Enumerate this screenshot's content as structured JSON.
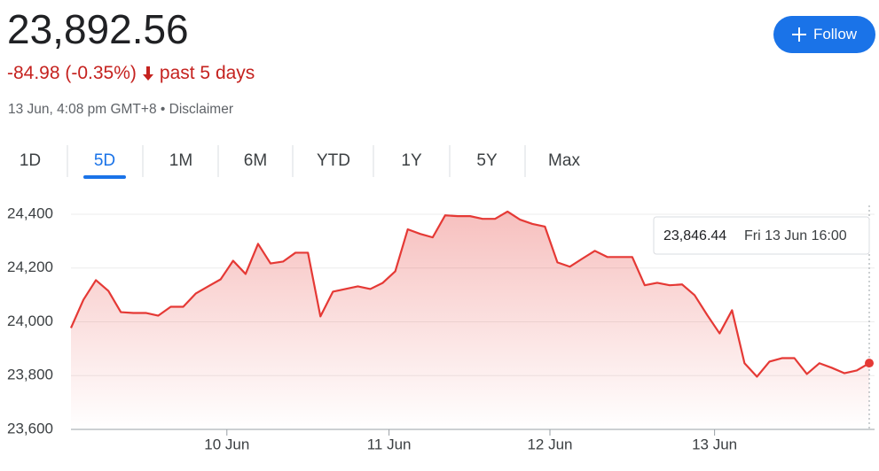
{
  "header": {
    "price": "23,892.56",
    "change": "-84.98 (-0.35%)",
    "period": "past 5 days",
    "timestamp": "13 Jun, 4:08 pm GMT+8",
    "separator": "•",
    "disclaimer": "Disclaimer"
  },
  "follow_button": "Follow",
  "tabs": {
    "items": [
      "1D",
      "5D",
      "1M",
      "6M",
      "YTD",
      "1Y",
      "5Y",
      "Max"
    ],
    "active": 1
  },
  "chart_data": {
    "type": "line",
    "color": "#e53935",
    "x": [
      0,
      1,
      2,
      3,
      4,
      5,
      6,
      7,
      8,
      9,
      10,
      11,
      12,
      13,
      14,
      15,
      16,
      17,
      18,
      19,
      20,
      21,
      22,
      23,
      24,
      25,
      26,
      27,
      28,
      29,
      30,
      31,
      32,
      33,
      34,
      35,
      36,
      37,
      38,
      39,
      40,
      41,
      42,
      43,
      44,
      45,
      46,
      47,
      48,
      49,
      50,
      51,
      52,
      53,
      54,
      55,
      56,
      57,
      58,
      59,
      60,
      61,
      62,
      63,
      64
    ],
    "values": [
      23977,
      24082,
      24155,
      24115,
      24036,
      24033,
      24033,
      24023,
      24056,
      24056,
      24105,
      24132,
      24158,
      24227,
      24178,
      24290,
      24217,
      24224,
      24257,
      24257,
      24020,
      24112,
      24122,
      24132,
      24122,
      24145,
      24188,
      24344,
      24327,
      24314,
      24396,
      24393,
      24393,
      24383,
      24383,
      24410,
      24380,
      24364,
      24354,
      24221,
      24205,
      24235,
      24264,
      24241,
      24241,
      24241,
      24136,
      24145,
      24136,
      24139,
      24099,
      24026,
      23957,
      24043,
      23846,
      23796,
      23852,
      23865,
      23865,
      23806,
      23846,
      23829,
      23809,
      23819,
      23846.44
    ],
    "xlim": [
      0,
      64
    ],
    "xticks": [
      {
        "value": 12.5,
        "label": "10 Jun"
      },
      {
        "value": 25.5,
        "label": "11 Jun"
      },
      {
        "value": 38.4,
        "label": "12 Jun"
      },
      {
        "value": 51.6,
        "label": "13 Jun"
      }
    ],
    "ylim": [
      23600,
      24400
    ],
    "yticks": [
      {
        "value": 23600,
        "label": "23,600"
      },
      {
        "value": 23800,
        "label": "23,800"
      },
      {
        "value": 24000,
        "label": "24,000"
      },
      {
        "value": 24200,
        "label": "24,200"
      },
      {
        "value": 24400,
        "label": "24,400"
      }
    ],
    "grid": true,
    "tooltip": {
      "value": "23,846.44",
      "time": "Fri 13 Jun 16:00"
    }
  }
}
